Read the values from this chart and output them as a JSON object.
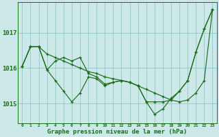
{
  "xlabel": "Graphe pression niveau de la mer (hPa)",
  "bg_color": "#cce8e8",
  "grid_color": "#99cccc",
  "line_color": "#1a6b1a",
  "x_ticks": [
    0,
    1,
    2,
    3,
    4,
    5,
    6,
    7,
    8,
    9,
    10,
    11,
    12,
    13,
    14,
    15,
    16,
    17,
    18,
    19,
    20,
    21,
    22,
    23
  ],
  "y_ticks": [
    1015,
    1016,
    1017
  ],
  "ylim": [
    1014.45,
    1017.85
  ],
  "xlim": [
    -0.5,
    23.5
  ],
  "series": [
    [
      1016.05,
      1016.6,
      1016.6,
      1016.4,
      1016.3,
      1016.2,
      1016.1,
      1016.0,
      1015.9,
      1015.85,
      1015.75,
      1015.7,
      1015.65,
      1015.6,
      1015.5,
      1015.4,
      1015.3,
      1015.2,
      1015.1,
      1015.05,
      1015.1,
      1015.3,
      1015.65,
      1017.65
    ],
    [
      1016.05,
      1016.6,
      1016.6,
      1015.95,
      1016.2,
      1016.3,
      1016.2,
      1016.3,
      1015.85,
      1015.75,
      1015.55,
      1015.6,
      1015.65,
      1015.6,
      1015.5,
      1015.05,
      1015.05,
      1015.05,
      1015.1,
      1015.35,
      1015.65,
      1016.45,
      1017.1,
      1017.65
    ],
    [
      1016.05,
      1016.6,
      1016.6,
      1015.95,
      1015.65,
      1015.35,
      1015.05,
      1015.3,
      1015.75,
      1015.7,
      1015.5,
      1015.6,
      1015.65,
      1015.6,
      1015.5,
      1015.05,
      1014.7,
      1014.85,
      1015.15,
      1015.35,
      1015.65,
      1016.45,
      1017.1,
      1017.65
    ]
  ],
  "figsize": [
    3.2,
    2.0
  ],
  "dpi": 100
}
